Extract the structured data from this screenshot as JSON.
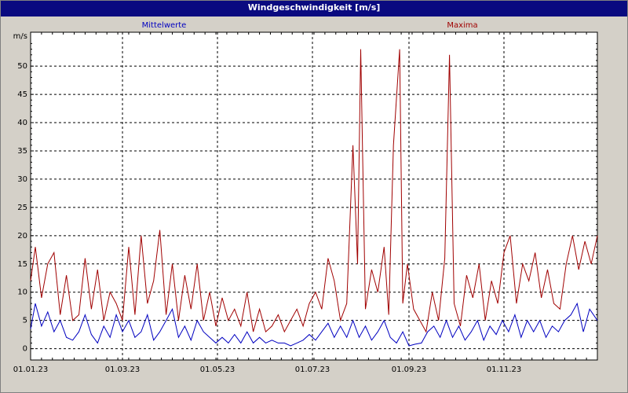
{
  "window": {
    "title": "Windgeschwindigkeit [m/s]"
  },
  "colors": {
    "background": "#d4d0c8",
    "plot_bg": "#ffffff",
    "titlebar": "#0a0a80",
    "mean": "#0000c0",
    "max": "#a00000",
    "grid": "#000000"
  },
  "chart_data": {
    "type": "line",
    "title": "Windgeschwindigkeit [m/s]",
    "ylabel": "m/s",
    "ylim": [
      -2,
      56
    ],
    "yticks": [
      0,
      5,
      10,
      15,
      20,
      25,
      30,
      35,
      40,
      45,
      50
    ],
    "xlim": [
      "2023-01-01",
      "2023-12-31"
    ],
    "xtick_dates": [
      "2023-01-01",
      "2023-03-01",
      "2023-05-01",
      "2023-07-01",
      "2023-09-01",
      "2023-11-01"
    ],
    "xtick_labels": [
      "01.01.23",
      "01.03.23",
      "01.05.23",
      "01.07.23",
      "01.09.23",
      "01.11.23"
    ],
    "grid": true,
    "legend_position": "top",
    "series": [
      {
        "name": "Mittelwerte",
        "color": "#0000c0",
        "x": [
          "2023-01-01",
          "2023-01-04",
          "2023-01-08",
          "2023-01-12",
          "2023-01-16",
          "2023-01-20",
          "2023-01-24",
          "2023-01-28",
          "2023-02-01",
          "2023-02-05",
          "2023-02-09",
          "2023-02-13",
          "2023-02-17",
          "2023-02-21",
          "2023-02-25",
          "2023-03-01",
          "2023-03-05",
          "2023-03-09",
          "2023-03-13",
          "2023-03-17",
          "2023-03-21",
          "2023-03-25",
          "2023-03-29",
          "2023-04-02",
          "2023-04-06",
          "2023-04-10",
          "2023-04-14",
          "2023-04-18",
          "2023-04-22",
          "2023-04-26",
          "2023-04-30",
          "2023-05-04",
          "2023-05-08",
          "2023-05-12",
          "2023-05-16",
          "2023-05-20",
          "2023-05-24",
          "2023-05-28",
          "2023-06-01",
          "2023-06-05",
          "2023-06-09",
          "2023-06-13",
          "2023-06-17",
          "2023-06-21",
          "2023-06-25",
          "2023-06-29",
          "2023-07-03",
          "2023-07-07",
          "2023-07-11",
          "2023-07-15",
          "2023-07-19",
          "2023-07-23",
          "2023-07-27",
          "2023-07-31",
          "2023-08-04",
          "2023-08-08",
          "2023-08-12",
          "2023-08-16",
          "2023-08-20",
          "2023-08-24",
          "2023-08-28",
          "2023-09-01",
          "2023-09-05",
          "2023-09-09",
          "2023-09-13",
          "2023-09-17",
          "2023-09-21",
          "2023-09-25",
          "2023-09-29",
          "2023-10-03",
          "2023-10-07",
          "2023-10-11",
          "2023-10-15",
          "2023-10-19",
          "2023-10-23",
          "2023-10-27",
          "2023-10-31",
          "2023-11-04",
          "2023-11-08",
          "2023-11-12",
          "2023-11-16",
          "2023-11-20",
          "2023-11-24",
          "2023-11-28",
          "2023-12-02",
          "2023-12-06",
          "2023-12-10",
          "2023-12-14",
          "2023-12-18",
          "2023-12-22",
          "2023-12-26",
          "2023-12-31"
        ],
        "y": [
          3.5,
          8,
          4,
          6.5,
          3,
          5,
          2,
          1.5,
          3,
          6,
          2.5,
          1,
          4,
          2,
          6,
          3,
          5,
          2,
          3,
          6,
          1.5,
          3,
          5,
          7,
          2,
          4,
          1.5,
          5,
          3,
          2,
          1,
          2,
          1,
          2.5,
          1,
          3,
          1,
          2,
          1,
          1.5,
          1,
          1,
          0.5,
          1,
          1.5,
          2.5,
          1.5,
          3,
          4.5,
          2,
          4,
          2,
          5,
          2,
          4,
          1.5,
          3,
          5,
          2,
          1,
          3,
          0.5,
          0.8,
          1,
          3,
          4,
          2,
          5,
          2,
          4,
          1.5,
          3,
          5,
          1.5,
          4,
          2.5,
          5,
          3,
          6,
          2,
          5,
          3,
          5,
          2,
          4,
          3,
          5,
          6,
          8,
          3,
          7,
          5
        ]
      },
      {
        "name": "Maxima",
        "color": "#a00000",
        "x": [
          "2023-01-01",
          "2023-01-04",
          "2023-01-08",
          "2023-01-12",
          "2023-01-16",
          "2023-01-20",
          "2023-01-24",
          "2023-01-28",
          "2023-02-01",
          "2023-02-05",
          "2023-02-09",
          "2023-02-13",
          "2023-02-17",
          "2023-02-21",
          "2023-02-25",
          "2023-03-01",
          "2023-03-05",
          "2023-03-09",
          "2023-03-13",
          "2023-03-17",
          "2023-03-21",
          "2023-03-25",
          "2023-03-29",
          "2023-04-02",
          "2023-04-06",
          "2023-04-10",
          "2023-04-14",
          "2023-04-18",
          "2023-04-22",
          "2023-04-26",
          "2023-04-30",
          "2023-05-04",
          "2023-05-08",
          "2023-05-12",
          "2023-05-16",
          "2023-05-20",
          "2023-05-24",
          "2023-05-28",
          "2023-06-01",
          "2023-06-05",
          "2023-06-09",
          "2023-06-13",
          "2023-06-17",
          "2023-06-21",
          "2023-06-25",
          "2023-06-29",
          "2023-07-03",
          "2023-07-07",
          "2023-07-11",
          "2023-07-15",
          "2023-07-19",
          "2023-07-23",
          "2023-07-27",
          "2023-07-30",
          "2023-08-01",
          "2023-08-04",
          "2023-08-08",
          "2023-08-12",
          "2023-08-16",
          "2023-08-19",
          "2023-08-22",
          "2023-08-26",
          "2023-08-28",
          "2023-08-31",
          "2023-09-04",
          "2023-09-08",
          "2023-09-12",
          "2023-09-16",
          "2023-09-20",
          "2023-09-24",
          "2023-09-27",
          "2023-09-30",
          "2023-10-04",
          "2023-10-08",
          "2023-10-12",
          "2023-10-16",
          "2023-10-20",
          "2023-10-24",
          "2023-10-28",
          "2023-11-01",
          "2023-11-05",
          "2023-11-09",
          "2023-11-13",
          "2023-11-17",
          "2023-11-21",
          "2023-11-25",
          "2023-11-29",
          "2023-12-03",
          "2023-12-07",
          "2023-12-11",
          "2023-12-15",
          "2023-12-19",
          "2023-12-23",
          "2023-12-27",
          "2023-12-31"
        ],
        "y": [
          12,
          18,
          9,
          15,
          17,
          6,
          13,
          5,
          6,
          16,
          7,
          14,
          5,
          10,
          8,
          5,
          18,
          6,
          20,
          8,
          12,
          21,
          6,
          15,
          5,
          13,
          7,
          15,
          5,
          10,
          4,
          9,
          5,
          7,
          4,
          10,
          3,
          7,
          3,
          4,
          6,
          3,
          5,
          7,
          4,
          8,
          10,
          7,
          16,
          12,
          5,
          8,
          36,
          15,
          53,
          7,
          14,
          10,
          18,
          6,
          36,
          53,
          8,
          15,
          7,
          5,
          3,
          10,
          5,
          16,
          52,
          8,
          4,
          13,
          9,
          15,
          5,
          12,
          8,
          17,
          20,
          8,
          15,
          12,
          17,
          9,
          14,
          8,
          7,
          15,
          20,
          14,
          19,
          15,
          20
        ]
      }
    ]
  }
}
